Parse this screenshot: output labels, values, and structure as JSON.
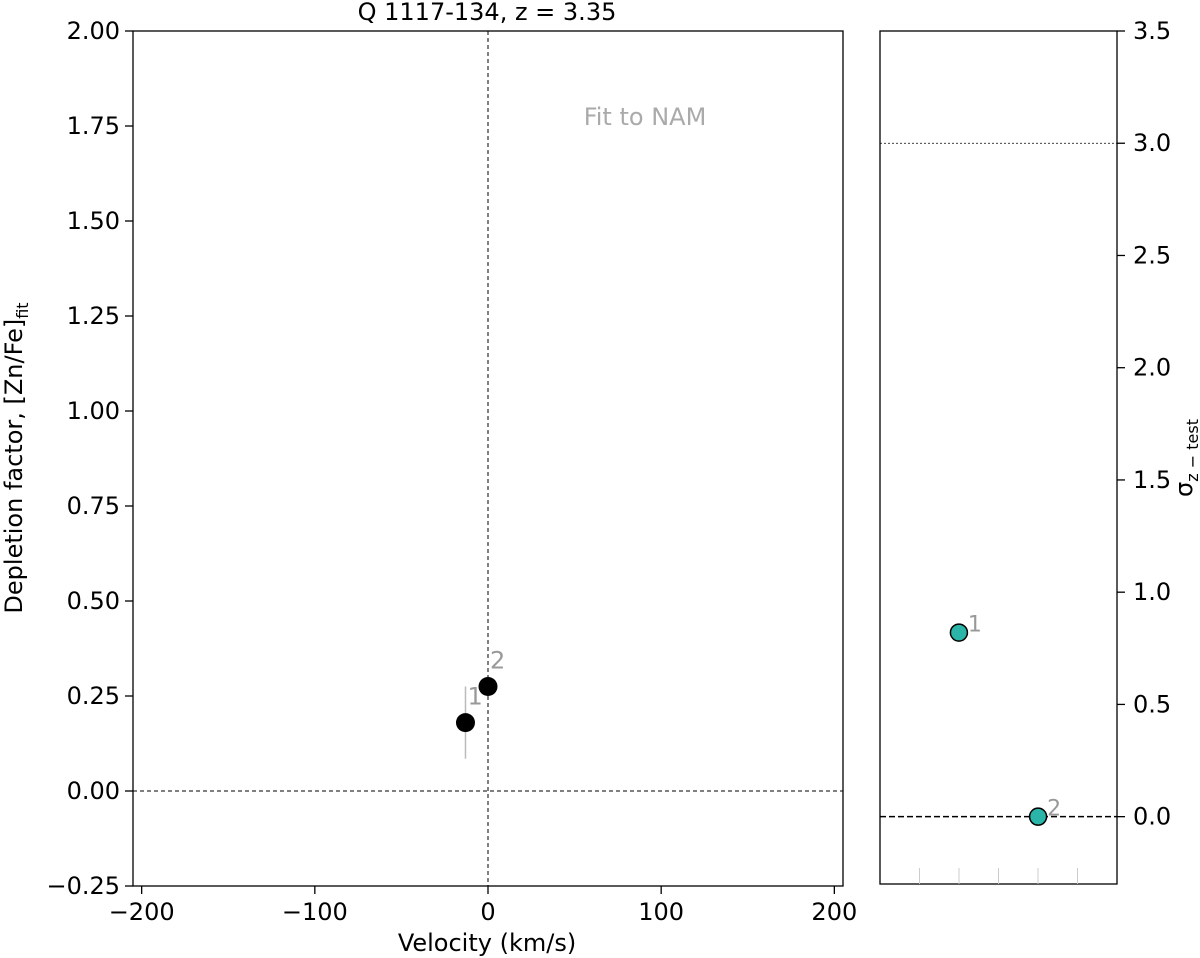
{
  "chart_data": [
    {
      "type": "scatter",
      "title": "Q 1117-134, z = 3.35",
      "xlabel": "Velocity (km/s)",
      "ylabel_main": "Depletion factor, [Zn/Fe]",
      "ylabel_sub": "fit",
      "xlim": [
        -205,
        205
      ],
      "ylim": [
        -0.25,
        2.0
      ],
      "xticks": [
        -200,
        -100,
        0,
        100,
        200
      ],
      "xtick_labels": [
        "−200",
        "−100",
        "0",
        "100",
        "200"
      ],
      "yticks": [
        -0.25,
        0.0,
        0.25,
        0.5,
        0.75,
        1.0,
        1.25,
        1.5,
        1.75,
        2.0
      ],
      "ytick_labels": [
        "−0.25",
        "0.00",
        "0.25",
        "0.50",
        "0.75",
        "1.00",
        "1.25",
        "1.50",
        "1.75",
        "2.00"
      ],
      "annotation": "Fit to NAM",
      "reference_lines": {
        "x": 0,
        "y": 0
      },
      "grid": false,
      "points": [
        {
          "label": "1",
          "x": -13,
          "y": 0.18,
          "err": 0.095
        },
        {
          "label": "2",
          "x": 0,
          "y": 0.275,
          "err": 0.0
        }
      ],
      "colors": {
        "marker": "#000000",
        "errorbar": "#bbbbbb",
        "label": "#999999",
        "annotation": "#aaaaaa"
      }
    },
    {
      "type": "scatter",
      "ylabel_main": "σ",
      "ylabel_sub": "z − test",
      "ylim": [
        -0.3,
        3.5
      ],
      "yticks": [
        0.0,
        0.5,
        1.0,
        1.5,
        2.0,
        2.5,
        3.0,
        3.5
      ],
      "ytick_labels": [
        "0.0",
        "0.5",
        "1.0",
        "1.5",
        "2.0",
        "2.5",
        "3.0",
        "3.5"
      ],
      "reference_lines": {
        "y_dashed": 0.0,
        "y_dotted": 3.0
      },
      "grid": false,
      "points": [
        {
          "label": "1",
          "x": 0.333,
          "y": 0.82
        },
        {
          "label": "2",
          "x": 0.667,
          "y": 0.0
        }
      ],
      "colors": {
        "marker": "#2ab5a8",
        "edge": "#000000",
        "label": "#999999"
      }
    }
  ]
}
